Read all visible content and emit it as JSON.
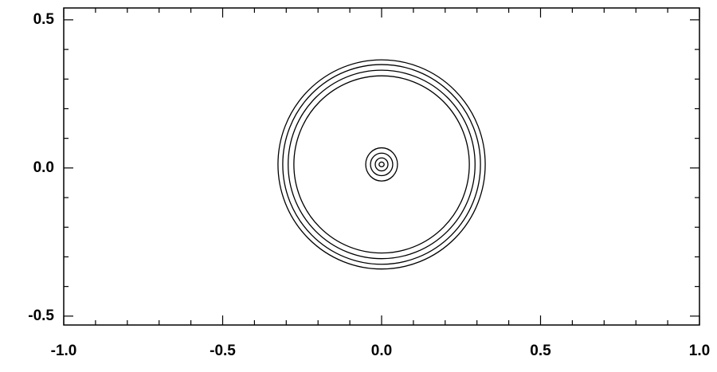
{
  "chart_data": {
    "type": "contour",
    "xlim": [
      -1.0,
      1.0
    ],
    "ylim": [
      -0.53,
      0.54
    ],
    "xticks": [
      {
        "value": -1.0,
        "label": "-1.0"
      },
      {
        "value": -0.5,
        "label": "-0.5"
      },
      {
        "value": 0,
        "label": "0.0"
      },
      {
        "value": 0.5,
        "label": "0.5"
      },
      {
        "value": 1.0,
        "label": "1.0"
      }
    ],
    "yticks": [
      {
        "value": -0.5,
        "label": "-0.5"
      },
      {
        "value": 0,
        "label": "0.0"
      },
      {
        "value": 0.5,
        "label": "0.5"
      }
    ],
    "xminorticks": [
      -0.9,
      -0.8,
      -0.7,
      -0.6,
      -0.4,
      -0.3,
      -0.2,
      -0.1,
      0.1,
      0.2,
      0.3,
      0.4,
      0.6,
      0.7,
      0.8,
      0.9
    ],
    "yminorticks": [
      -0.4,
      -0.3,
      -0.2,
      -0.1,
      0.1,
      0.2,
      0.3,
      0.4
    ],
    "color": "#000000",
    "contours": [
      {
        "cx": 0.0,
        "cy": 0.012,
        "rx": 0.326,
        "ry": 0.353
      },
      {
        "cx": 0.0,
        "cy": 0.012,
        "rx": 0.311,
        "ry": 0.337
      },
      {
        "cx": 0.0,
        "cy": 0.012,
        "rx": 0.294,
        "ry": 0.318
      },
      {
        "cx": 0.0,
        "cy": 0.012,
        "rx": 0.276,
        "ry": 0.299
      },
      {
        "cx": 0.0,
        "cy": 0.012,
        "rx": 0.05,
        "ry": 0.056
      },
      {
        "cx": 0.0,
        "cy": 0.012,
        "rx": 0.035,
        "ry": 0.038
      },
      {
        "cx": 0.0,
        "cy": 0.012,
        "rx": 0.02,
        "ry": 0.022
      },
      {
        "cx": 0.0,
        "cy": 0.012,
        "rx": 0.008,
        "ry": 0.008
      }
    ]
  }
}
